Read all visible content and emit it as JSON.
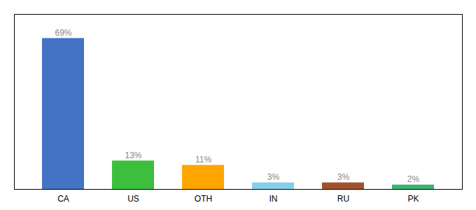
{
  "chart_data": {
    "type": "bar",
    "categories": [
      "CA",
      "US",
      "OTH",
      "IN",
      "RU",
      "PK"
    ],
    "values": [
      69,
      13,
      11,
      3,
      3,
      2
    ],
    "value_labels": [
      "69%",
      "13%",
      "11%",
      "3%",
      "3%",
      "2%"
    ],
    "colors": [
      "#4472C4",
      "#3DBE3D",
      "#FFA500",
      "#87CEEB",
      "#A0522D",
      "#3CB371"
    ],
    "data_labels": true,
    "ylim": [
      0,
      80
    ],
    "tick_labels": "x"
  }
}
